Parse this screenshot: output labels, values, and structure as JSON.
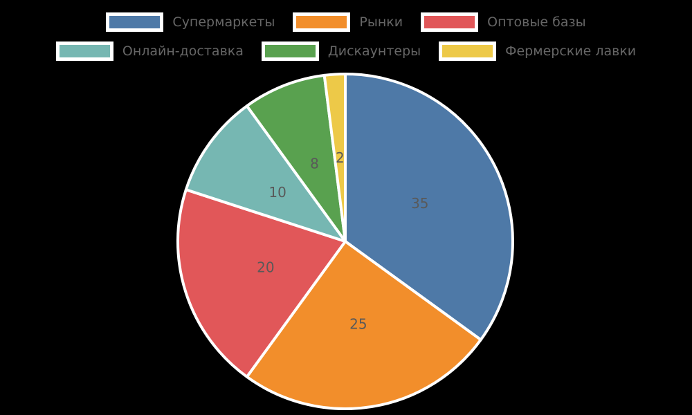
{
  "chart_data": {
    "type": "pie",
    "labels": [
      "Супермаркеты",
      "Рынки",
      "Оптовые базы",
      "Онлайн-доставка",
      "Дискаунтеры",
      "Фермерские лавки"
    ],
    "values": [
      35,
      25,
      20,
      10,
      8,
      2
    ],
    "value_labels": [
      "35",
      "25",
      "20",
      "10",
      "8",
      "2"
    ],
    "colors": [
      "#4e79a7",
      "#f28e2b",
      "#e15759",
      "#76b7b2",
      "#59a14f",
      "#edc948"
    ],
    "start_angle": 90,
    "direction": "clockwise",
    "legend_position": "top",
    "legend_rows": [
      [
        "Супермаркеты",
        "Рынки",
        "Оптовые базы"
      ],
      [
        "Онлайн-доставка",
        "Дискаунтеры",
        "Фермерские лавки"
      ]
    ],
    "slice_edge_color": "#ffffff",
    "slice_label_color": "#595959",
    "legend_text_color": "#666666",
    "background_color": "#000000",
    "title": ""
  }
}
